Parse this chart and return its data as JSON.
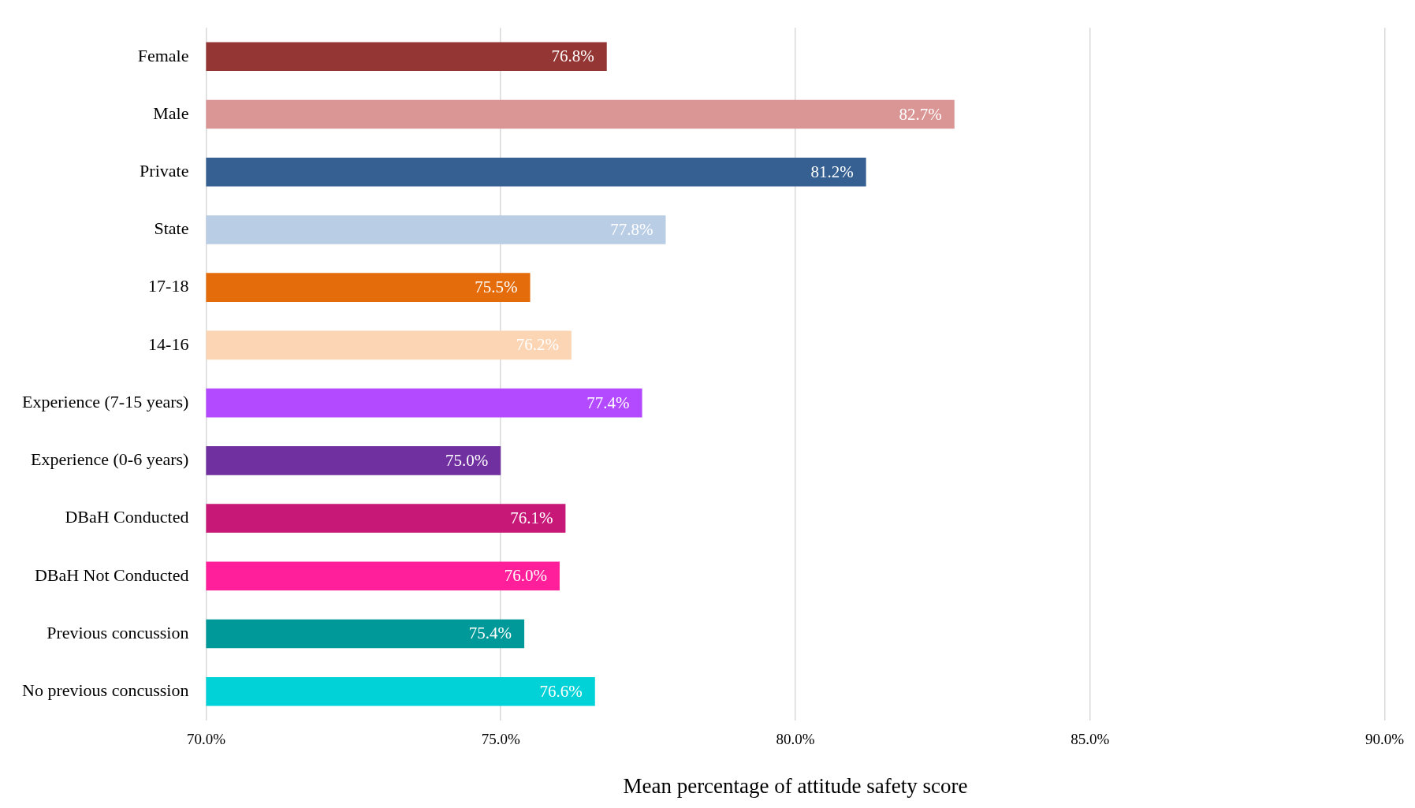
{
  "chart_data": {
    "type": "bar",
    "orientation": "horizontal",
    "xlabel": "Mean percentage of attitude safety score",
    "categories": [
      "Female",
      "Male",
      "Private",
      "State",
      "17-18",
      "14-16",
      "Experience (7-15 years)",
      "Experience (0-6 years)",
      "DBaH Conducted",
      "DBaH Not Conducted",
      "Previous concussion",
      "No previous concussion"
    ],
    "values": [
      76.8,
      82.7,
      81.2,
      77.8,
      75.5,
      76.2,
      77.4,
      75.0,
      76.1,
      76.0,
      75.4,
      76.6
    ],
    "value_labels": [
      "76.8%",
      "82.7%",
      "81.2%",
      "77.8%",
      "75.5%",
      "76.2%",
      "77.4%",
      "75.0%",
      "76.1%",
      "76.0%",
      "75.4%",
      "76.6%"
    ],
    "colors": [
      "#943634",
      "#d99694",
      "#366092",
      "#b9cde5",
      "#e46c0a",
      "#fcd5b5",
      "#b34aff",
      "#7030a0",
      "#c71878",
      "#ff1f9a",
      "#009999",
      "#00d2d8"
    ],
    "xlim": [
      70,
      90
    ],
    "xticks": [
      {
        "value": 70,
        "label": "70.0%"
      },
      {
        "value": 75,
        "label": "75.0%"
      },
      {
        "value": 80,
        "label": "80.0%"
      },
      {
        "value": 85,
        "label": "85.0%"
      },
      {
        "value": 90,
        "label": "90.0%"
      }
    ],
    "grid": "x",
    "legend": false
  }
}
